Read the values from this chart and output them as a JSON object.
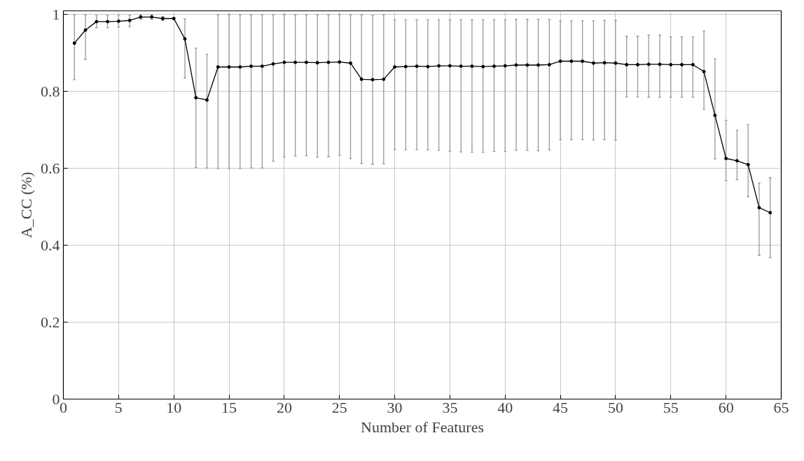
{
  "chart_data": {
    "type": "line",
    "xlabel": "Number of Features",
    "ylabel": "A_CC (%)",
    "x": [
      1,
      2,
      3,
      4,
      5,
      6,
      7,
      8,
      9,
      10,
      11,
      12,
      13,
      14,
      15,
      16,
      17,
      18,
      19,
      20,
      21,
      22,
      23,
      24,
      25,
      26,
      27,
      28,
      29,
      30,
      31,
      32,
      33,
      34,
      35,
      36,
      37,
      38,
      39,
      40,
      41,
      42,
      43,
      44,
      45,
      46,
      47,
      48,
      49,
      50,
      51,
      52,
      53,
      54,
      55,
      56,
      57,
      58,
      59,
      60,
      61,
      62,
      63,
      64
    ],
    "series": [
      {
        "color": "#000000",
        "values": [
          0.926,
          0.96,
          0.982,
          0.982,
          0.983,
          0.985,
          0.994,
          0.994,
          0.99,
          0.99,
          0.937,
          0.784,
          0.778,
          0.864,
          0.864,
          0.864,
          0.866,
          0.866,
          0.872,
          0.876,
          0.876,
          0.876,
          0.875,
          0.876,
          0.877,
          0.874,
          0.832,
          0.831,
          0.832,
          0.864,
          0.865,
          0.866,
          0.865,
          0.867,
          0.867,
          0.866,
          0.866,
          0.865,
          0.866,
          0.867,
          0.869,
          0.869,
          0.869,
          0.87,
          0.879,
          0.879,
          0.879,
          0.874,
          0.875,
          0.874,
          0.87,
          0.87,
          0.871,
          0.871,
          0.87,
          0.87,
          0.87,
          0.852,
          0.738,
          0.626,
          0.62,
          0.61,
          0.498,
          0.485
        ],
        "errors": [
          [
            0.831,
            1.0
          ],
          [
            0.884,
            1.0
          ],
          [
            0.966,
            0.998
          ],
          [
            0.966,
            0.998
          ],
          [
            0.968,
            0.998
          ],
          [
            0.969,
            0.999
          ],
          [
            0.988,
            1.0
          ],
          [
            0.988,
            1.0
          ],
          [
            0.985,
            0.995
          ],
          [
            0.987,
            0.993
          ],
          [
            0.835,
            0.989
          ],
          [
            0.602,
            0.913
          ],
          [
            0.601,
            0.897
          ],
          [
            0.6,
            1.0
          ],
          [
            0.6,
            1.0
          ],
          [
            0.6,
            1.0
          ],
          [
            0.601,
            1.0
          ],
          [
            0.601,
            1.0
          ],
          [
            0.619,
            1.0
          ],
          [
            0.63,
            1.0
          ],
          [
            0.632,
            1.0
          ],
          [
            0.633,
            1.0
          ],
          [
            0.629,
            1.0
          ],
          [
            0.631,
            1.0
          ],
          [
            0.634,
            1.0
          ],
          [
            0.626,
            1.0
          ],
          [
            0.613,
            1.0
          ],
          [
            0.611,
            0.998
          ],
          [
            0.612,
            1.0
          ],
          [
            0.649,
            0.987
          ],
          [
            0.649,
            0.987
          ],
          [
            0.649,
            0.987
          ],
          [
            0.648,
            0.987
          ],
          [
            0.647,
            0.987
          ],
          [
            0.645,
            0.987
          ],
          [
            0.643,
            0.987
          ],
          [
            0.642,
            0.987
          ],
          [
            0.642,
            0.987
          ],
          [
            0.644,
            0.987
          ],
          [
            0.644,
            0.987
          ],
          [
            0.647,
            0.988
          ],
          [
            0.647,
            0.988
          ],
          [
            0.646,
            0.988
          ],
          [
            0.648,
            0.988
          ],
          [
            0.675,
            0.984
          ],
          [
            0.675,
            0.984
          ],
          [
            0.675,
            0.984
          ],
          [
            0.674,
            0.984
          ],
          [
            0.675,
            0.985
          ],
          [
            0.674,
            0.985
          ],
          [
            0.786,
            0.944
          ],
          [
            0.786,
            0.944
          ],
          [
            0.785,
            0.947
          ],
          [
            0.785,
            0.947
          ],
          [
            0.785,
            0.942
          ],
          [
            0.785,
            0.942
          ],
          [
            0.785,
            0.942
          ],
          [
            0.754,
            0.958
          ],
          [
            0.625,
            0.885
          ],
          [
            0.568,
            0.725
          ],
          [
            0.571,
            0.699
          ],
          [
            0.526,
            0.714
          ],
          [
            0.374,
            0.562
          ],
          [
            0.368,
            0.576
          ]
        ]
      }
    ],
    "xlim": [
      0,
      65
    ],
    "ylim": [
      0,
      1.01
    ],
    "xticks": [
      0,
      5,
      10,
      15,
      20,
      25,
      30,
      35,
      40,
      45,
      50,
      55,
      60,
      65
    ],
    "yticks": [
      0,
      0.2,
      0.4,
      0.6,
      0.8,
      1
    ],
    "grid": true,
    "marker": "circle",
    "line_style": "solid"
  }
}
